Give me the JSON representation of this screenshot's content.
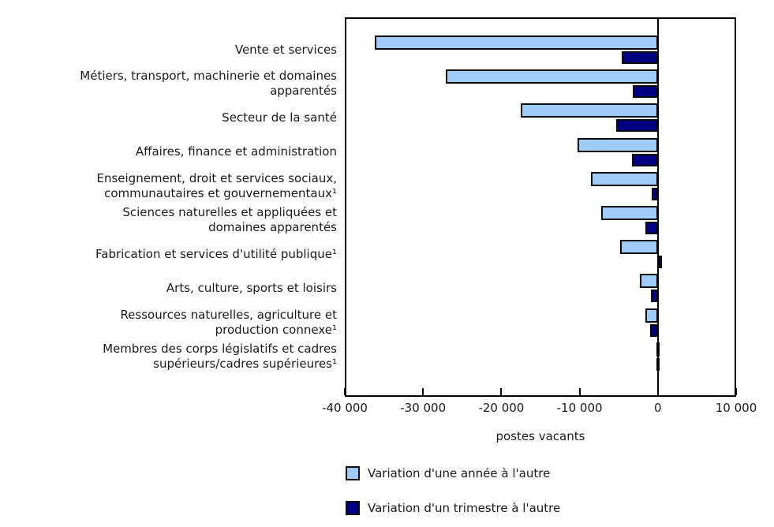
{
  "chart_data": {
    "type": "bar",
    "orientation": "horizontal",
    "title": "",
    "xlabel": "postes vacants",
    "xlim": [
      -40000,
      10000
    ],
    "xticks": [
      -40000,
      -30000,
      -20000,
      -10000,
      0,
      10000
    ],
    "xtick_labels": [
      "-40 000",
      "-30 000",
      "-20 000",
      "-10 000",
      "0",
      "10 000"
    ],
    "grid": false,
    "legend_position": "bottom-left",
    "categories": [
      [
        "Vente et services"
      ],
      [
        "Métiers, transport, machinerie et domaines",
        "apparentés"
      ],
      [
        "Secteur de la santé"
      ],
      [
        "Affaires, finance et administration"
      ],
      [
        "Enseignement, droit et services sociaux,",
        "communautaires et gouvernementaux¹"
      ],
      [
        "Sciences naturelles et appliquées et",
        "domaines apparentés"
      ],
      [
        "Fabrication et services d'utilité publique¹"
      ],
      [
        "Arts, culture, sports et loisirs"
      ],
      [
        "Ressources naturelles, agriculture et",
        "production connexe¹"
      ],
      [
        "Membres des corps législatifs et cadres",
        "supérieurs/cadres supérieures¹"
      ]
    ],
    "series": [
      {
        "name": "Variation d'une année à l'autre",
        "color": "#9ECBF7",
        "values": [
          -36200,
          -27100,
          -17500,
          -10300,
          -8500,
          -7200,
          -4800,
          -2300,
          -1600,
          -200
        ]
      },
      {
        "name": "Variation d'un trimestre à l'autre",
        "color": "#000080",
        "values": [
          -4600,
          -3200,
          -5300,
          -3300,
          -800,
          -1600,
          500,
          -900,
          -1000,
          -200
        ]
      }
    ]
  },
  "colors": {
    "bar_border": "#0a0a0a",
    "axis": "#000000",
    "text": "#1a1a1a",
    "background": "#ffffff"
  }
}
